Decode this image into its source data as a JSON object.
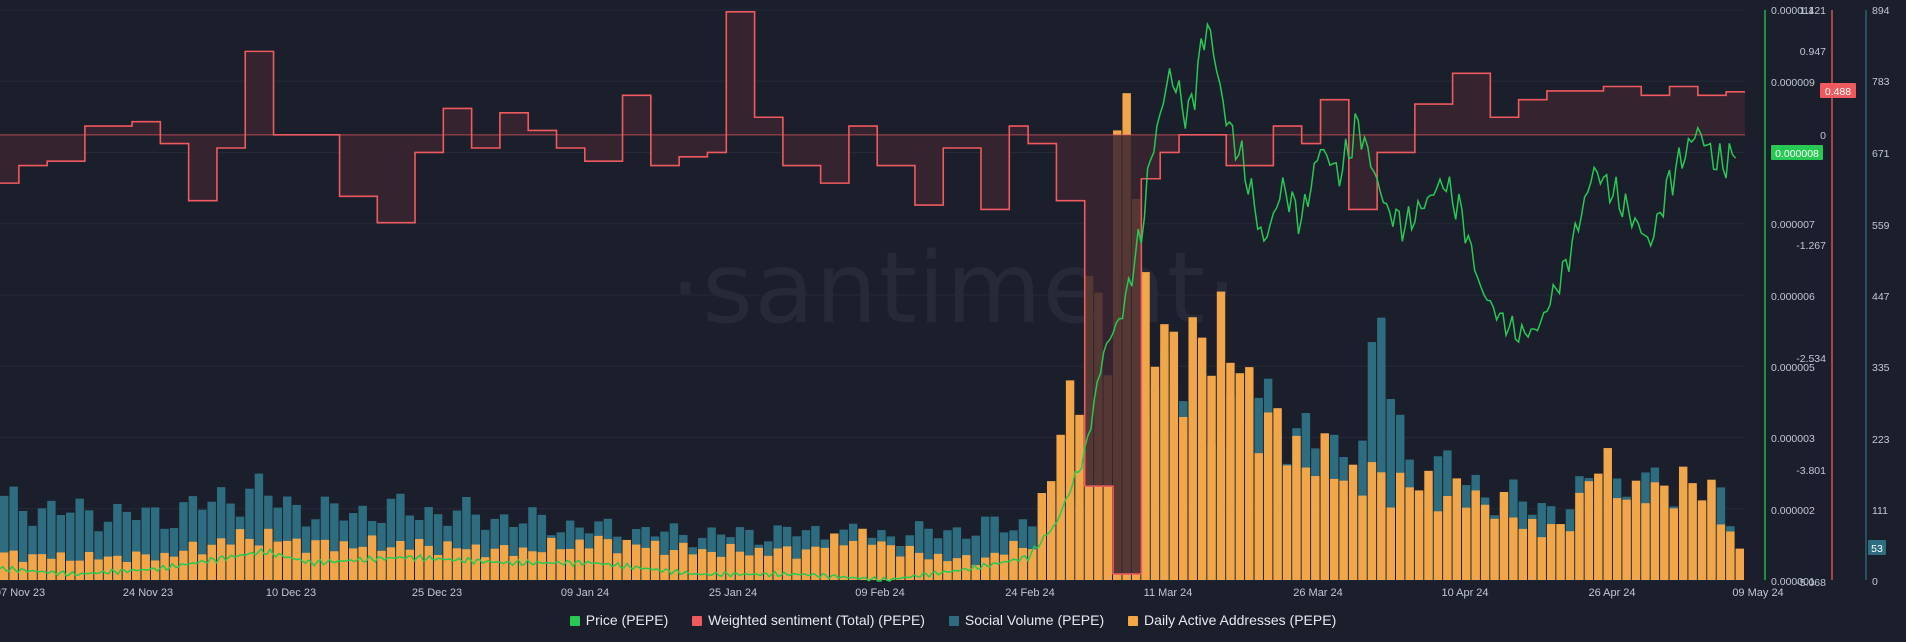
{
  "watermark": "·santiment·",
  "legend": [
    {
      "label": "Price (PEPE)",
      "color": "#26c953"
    },
    {
      "label": "Weighted sentiment (Total) (PEPE)",
      "color": "#ef5a5f"
    },
    {
      "label": "Social Volume (PEPE)",
      "color": "#2e6c80"
    },
    {
      "label": "Daily Active Addresses (PEPE)",
      "color": "#f2a64a"
    }
  ],
  "colors": {
    "background": "#1b1e2b",
    "price": "#26c953",
    "sentiment_line": "#ef5a5f",
    "sentiment_fill": "#3a2430",
    "social_volume": "#2e6c80",
    "daa": "#f2a64a",
    "grid": "#262a38",
    "axis_text": "#c2c7d6"
  },
  "chart_data": {
    "type": "bar+line",
    "x_ticks": [
      "07 Nov 23",
      "24 Nov 23",
      "10 Dec 23",
      "25 Dec 23",
      "09 Jan 24",
      "25 Jan 24",
      "09 Feb 24",
      "24 Feb 24",
      "11 Mar 24",
      "26 Mar 24",
      "10 Apr 24",
      "26 Apr 24",
      "09 May 24"
    ],
    "x_range": [
      "2023-11-07",
      "2024-05-10"
    ],
    "grid": true,
    "legend_position": "bottom",
    "axes": {
      "price": {
        "ticks": [
          "0.000011",
          "0.000009",
          "0.000007",
          "0.000006",
          "0.000005",
          "0.000003",
          "0.000002",
          "0.000001"
        ],
        "range": [
          1e-06,
          1.1e-05
        ],
        "current": "0.000008"
      },
      "sentiment": {
        "ticks": [
          "1.421",
          "0.947",
          "0",
          "-1.267",
          "-2.534",
          "-3.801",
          "-5.068"
        ],
        "range": [
          -5.068,
          1.421
        ],
        "current": "0.488"
      },
      "volume": {
        "ticks": [
          "894",
          "783",
          "671",
          "559",
          "447",
          "335",
          "223",
          "111",
          "0"
        ],
        "range": [
          0,
          894
        ],
        "current": "53"
      }
    },
    "series": [
      {
        "name": "Price (PEPE)",
        "type": "line",
        "points": [
          [
            "2023-11-07",
            1.2e-06
          ],
          [
            "2023-11-15",
            1.1e-06
          ],
          [
            "2023-11-24",
            1.2e-06
          ],
          [
            "2023-12-05",
            1.5e-06
          ],
          [
            "2023-12-10",
            1.3e-06
          ],
          [
            "2023-12-20",
            1.4e-06
          ],
          [
            "2023-12-31",
            1.3e-06
          ],
          [
            "2024-01-09",
            1.3e-06
          ],
          [
            "2024-01-20",
            1.1e-06
          ],
          [
            "2024-01-31",
            1.1e-06
          ],
          [
            "2024-02-09",
            1e-06
          ],
          [
            "2024-02-18",
            1.2e-06
          ],
          [
            "2024-02-24",
            1.4e-06
          ],
          [
            "2024-02-27",
            2e-06
          ],
          [
            "2024-03-01",
            3.2e-06
          ],
          [
            "2024-03-03",
            5e-06
          ],
          [
            "2024-03-05",
            5.7e-06
          ],
          [
            "2024-03-06",
            6.4e-06
          ],
          [
            "2024-03-07",
            7.1e-06
          ],
          [
            "2024-03-08",
            8.4e-06
          ],
          [
            "2024-03-10",
            9.9e-06
          ],
          [
            "2024-03-12",
            9.1e-06
          ],
          [
            "2024-03-14",
            1.08e-05
          ],
          [
            "2024-03-16",
            9.1e-06
          ],
          [
            "2024-03-18",
            8.2e-06
          ],
          [
            "2024-03-20",
            6.9e-06
          ],
          [
            "2024-03-22",
            7.9e-06
          ],
          [
            "2024-03-24",
            7.3e-06
          ],
          [
            "2024-03-26",
            8.6e-06
          ],
          [
            "2024-03-28",
            8.1e-06
          ],
          [
            "2024-03-30",
            9e-06
          ],
          [
            "2024-04-02",
            7.5e-06
          ],
          [
            "2024-04-04",
            7.2e-06
          ],
          [
            "2024-04-06",
            7.6e-06
          ],
          [
            "2024-04-08",
            8e-06
          ],
          [
            "2024-04-10",
            7.4e-06
          ],
          [
            "2024-04-12",
            6.1e-06
          ],
          [
            "2024-04-14",
            5.6e-06
          ],
          [
            "2024-04-16",
            5.3e-06
          ],
          [
            "2024-04-18",
            5.4e-06
          ],
          [
            "2024-04-21",
            6.5e-06
          ],
          [
            "2024-04-24",
            8.2e-06
          ],
          [
            "2024-04-27",
            7.6e-06
          ],
          [
            "2024-04-30",
            6.9e-06
          ],
          [
            "2024-05-02",
            8e-06
          ],
          [
            "2024-05-05",
            8.9e-06
          ],
          [
            "2024-05-07",
            8.3e-06
          ],
          [
            "2024-05-09",
            8.4e-06
          ]
        ]
      },
      {
        "name": "Weighted sentiment (Total) (PEPE)",
        "type": "step",
        "points": [
          [
            "2023-11-07",
            -0.55
          ],
          [
            "2023-11-09",
            -0.35
          ],
          [
            "2023-11-12",
            -0.3
          ],
          [
            "2023-11-16",
            0.1
          ],
          [
            "2023-11-21",
            0.15
          ],
          [
            "2023-11-24",
            -0.1
          ],
          [
            "2023-11-27",
            -0.75
          ],
          [
            "2023-11-30",
            -0.15
          ],
          [
            "2023-12-03",
            0.95
          ],
          [
            "2023-12-06",
            0
          ],
          [
            "2023-12-13",
            -0.7
          ],
          [
            "2023-12-17",
            -1.0
          ],
          [
            "2023-12-21",
            -0.2
          ],
          [
            "2023-12-24",
            0.3
          ],
          [
            "2023-12-27",
            -0.15
          ],
          [
            "2023-12-30",
            0.25
          ],
          [
            "2024-01-02",
            0.05
          ],
          [
            "2024-01-05",
            -0.15
          ],
          [
            "2024-01-08",
            -0.3
          ],
          [
            "2024-01-12",
            0.45
          ],
          [
            "2024-01-15",
            -0.35
          ],
          [
            "2024-01-18",
            -0.25
          ],
          [
            "2024-01-21",
            -0.2
          ],
          [
            "2024-01-23",
            1.4
          ],
          [
            "2024-01-26",
            0.2
          ],
          [
            "2024-01-29",
            -0.35
          ],
          [
            "2024-02-02",
            -0.55
          ],
          [
            "2024-02-05",
            0.1
          ],
          [
            "2024-02-08",
            -0.35
          ],
          [
            "2024-02-12",
            -0.8
          ],
          [
            "2024-02-15",
            -0.15
          ],
          [
            "2024-02-19",
            -0.85
          ],
          [
            "2024-02-22",
            0.1
          ],
          [
            "2024-02-24",
            -0.1
          ],
          [
            "2024-02-27",
            -0.75
          ],
          [
            "2024-03-01",
            -4.0
          ],
          [
            "2024-03-04",
            -5.0
          ],
          [
            "2024-03-07",
            -0.5
          ],
          [
            "2024-03-09",
            -0.2
          ],
          [
            "2024-03-11",
            0
          ],
          [
            "2024-03-16",
            -0.35
          ],
          [
            "2024-03-21",
            0.1
          ],
          [
            "2024-03-24",
            -0.1
          ],
          [
            "2024-03-26",
            0.4
          ],
          [
            "2024-03-29",
            -0.85
          ],
          [
            "2024-04-01",
            -0.2
          ],
          [
            "2024-04-05",
            0.35
          ],
          [
            "2024-04-09",
            0.7
          ],
          [
            "2024-04-13",
            0.2
          ],
          [
            "2024-04-16",
            0.4
          ],
          [
            "2024-04-19",
            0.5
          ],
          [
            "2024-04-25",
            0.55
          ],
          [
            "2024-04-29",
            0.45
          ],
          [
            "2024-05-02",
            0.55
          ],
          [
            "2024-05-05",
            0.45
          ],
          [
            "2024-05-08",
            0.49
          ]
        ]
      },
      {
        "name": "Social Volume (PEPE)",
        "type": "bar",
        "points": [
          [
            "2023-11-07",
            120
          ],
          [
            "2023-11-15",
            105
          ],
          [
            "2023-11-24",
            100
          ],
          [
            "2023-12-03",
            140
          ],
          [
            "2023-12-10",
            105
          ],
          [
            "2023-12-20",
            110
          ],
          [
            "2023-12-31",
            95
          ],
          [
            "2024-01-09",
            80
          ],
          [
            "2024-01-20",
            70
          ],
          [
            "2024-01-31",
            75
          ],
          [
            "2024-02-09",
            70
          ],
          [
            "2024-02-18",
            80
          ],
          [
            "2024-02-24",
            90
          ],
          [
            "2024-03-02",
            160
          ],
          [
            "2024-03-06",
            340
          ],
          [
            "2024-03-10",
            320
          ],
          [
            "2024-03-14",
            260
          ],
          [
            "2024-03-18",
            270
          ],
          [
            "2024-03-22",
            250
          ],
          [
            "2024-03-26",
            200
          ],
          [
            "2024-03-29",
            180
          ],
          [
            "2024-04-01",
            380
          ],
          [
            "2024-04-04",
            170
          ],
          [
            "2024-04-08",
            170
          ],
          [
            "2024-04-12",
            140
          ],
          [
            "2024-04-16",
            120
          ],
          [
            "2024-04-20",
            110
          ],
          [
            "2024-04-24",
            150
          ],
          [
            "2024-04-28",
            145
          ],
          [
            "2024-05-02",
            140
          ],
          [
            "2024-05-06",
            145
          ],
          [
            "2024-05-09",
            53
          ]
        ]
      },
      {
        "name": "Daily Active Addresses (PEPE)",
        "type": "bar",
        "points": [
          [
            "2023-11-07",
            40
          ],
          [
            "2023-11-15",
            35
          ],
          [
            "2023-11-24",
            38
          ],
          [
            "2023-12-03",
            70
          ],
          [
            "2023-12-10",
            55
          ],
          [
            "2023-12-20",
            55
          ],
          [
            "2023-12-31",
            45
          ],
          [
            "2024-01-09",
            60
          ],
          [
            "2024-01-20",
            45
          ],
          [
            "2024-01-31",
            45
          ],
          [
            "2024-02-05",
            70
          ],
          [
            "2024-02-12",
            40
          ],
          [
            "2024-02-18",
            30
          ],
          [
            "2024-02-24",
            60
          ],
          [
            "2024-02-27",
            220
          ],
          [
            "2024-03-01",
            420
          ],
          [
            "2024-03-03",
            380
          ],
          [
            "2024-03-05",
            880
          ],
          [
            "2024-03-07",
            380
          ],
          [
            "2024-03-09",
            420
          ],
          [
            "2024-03-11",
            300
          ],
          [
            "2024-03-14",
            420
          ],
          [
            "2024-03-18",
            290
          ],
          [
            "2024-03-22",
            210
          ],
          [
            "2024-03-26",
            180
          ],
          [
            "2024-03-30",
            160
          ],
          [
            "2024-04-03",
            150
          ],
          [
            "2024-04-07",
            140
          ],
          [
            "2024-04-10",
            130
          ],
          [
            "2024-04-13",
            120
          ],
          [
            "2024-04-16",
            90
          ],
          [
            "2024-04-20",
            75
          ],
          [
            "2024-04-24",
            180
          ],
          [
            "2024-04-28",
            130
          ],
          [
            "2024-05-02",
            150
          ],
          [
            "2024-05-06",
            140
          ],
          [
            "2024-05-09",
            40
          ]
        ]
      }
    ]
  }
}
